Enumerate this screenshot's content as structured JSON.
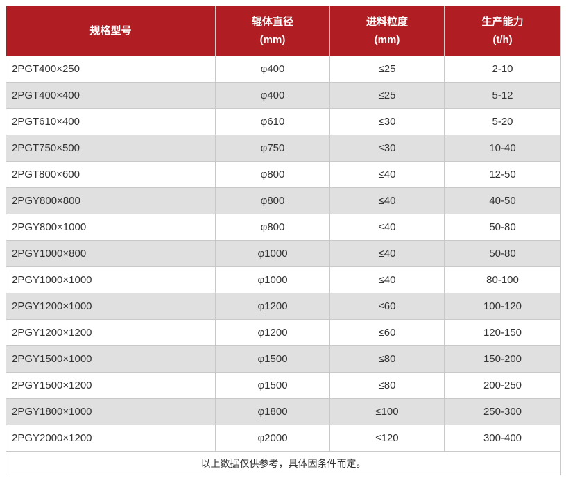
{
  "colors": {
    "header_bg": "#b01e23",
    "header_fg": "#ffffff",
    "row_alt_bg": "#e0e0e0",
    "border_color": "#c9c9c9",
    "outer_border": "#8f8f8f",
    "cell_fg": "#333333"
  },
  "table": {
    "headers": {
      "model": {
        "title": "规格型号",
        "unit": ""
      },
      "roller_diameter": {
        "title": "辊体直径",
        "unit": "(mm)"
      },
      "feed_size": {
        "title": "进料粒度",
        "unit": "(mm)"
      },
      "capacity": {
        "title": "生产能力",
        "unit": "(t/h)"
      }
    },
    "rows": [
      [
        "2PGT400×250",
        "φ400",
        "≤25",
        "2-10"
      ],
      [
        "2PGT400×400",
        "φ400",
        "≤25",
        "5-12"
      ],
      [
        "2PGT610×400",
        "φ610",
        "≤30",
        "5-20"
      ],
      [
        "2PGT750×500",
        "φ750",
        "≤30",
        "10-40"
      ],
      [
        "2PGT800×600",
        "φ800",
        "≤40",
        "12-50"
      ],
      [
        "2PGY800×800",
        "φ800",
        "≤40",
        "40-50"
      ],
      [
        "2PGY800×1000",
        "φ800",
        "≤40",
        "50-80"
      ],
      [
        "2PGY1000×800",
        "φ1000",
        "≤40",
        "50-80"
      ],
      [
        "2PGY1000×1000",
        "φ1000",
        "≤40",
        "80-100"
      ],
      [
        "2PGY1200×1000",
        "φ1200",
        "≤60",
        "100-120"
      ],
      [
        "2PGY1200×1200",
        "φ1200",
        "≤60",
        "120-150"
      ],
      [
        "2PGY1500×1000",
        "φ1500",
        "≤80",
        "150-200"
      ],
      [
        "2PGY1500×1200",
        "φ1500",
        "≤80",
        "200-250"
      ],
      [
        "2PGY1800×1000",
        "φ1800",
        "≤100",
        "250-300"
      ],
      [
        "2PGY2000×1200",
        "φ2000",
        "≤120",
        "300-400"
      ]
    ],
    "footer_note": "以上数据仅供参考，具体因条件而定。"
  }
}
